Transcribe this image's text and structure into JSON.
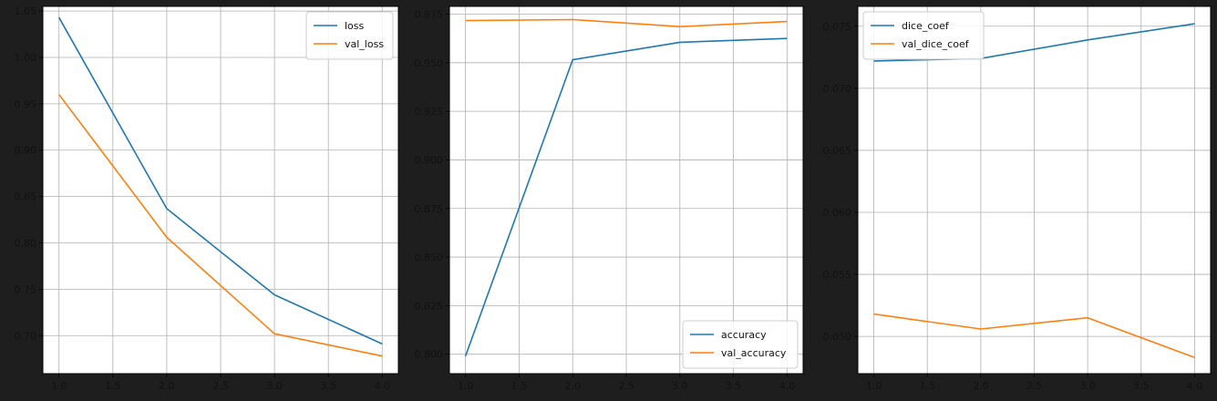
{
  "background": "#1e1e1e",
  "panel_color": "#ffffff",
  "grid_color": "#b0b0b0",
  "chart_data": [
    {
      "type": "line",
      "x": [
        1.0,
        2.0,
        3.0,
        4.0
      ],
      "series": [
        {
          "name": "loss",
          "color": "#1f77b4",
          "values": [
            1.043,
            0.837,
            0.744,
            0.691
          ]
        },
        {
          "name": "val_loss",
          "color": "#ff7f0e",
          "values": [
            0.96,
            0.806,
            0.702,
            0.678
          ]
        }
      ],
      "xlim": [
        0.85,
        4.15
      ],
      "ylim": [
        0.659,
        1.055
      ],
      "xticks": [
        1.0,
        1.5,
        2.0,
        2.5,
        3.0,
        3.5,
        4.0
      ],
      "xtick_labels": [
        "1.0",
        "1.5",
        "2.0",
        "2.5",
        "3.0",
        "3.5",
        "4.0"
      ],
      "yticks": [
        0.7,
        0.75,
        0.8,
        0.85,
        0.9,
        0.95,
        1.0,
        1.05
      ],
      "ytick_labels": [
        "0.70",
        "0.75",
        "0.80",
        "0.85",
        "0.90",
        "0.95",
        "1.00",
        "1.05"
      ],
      "grid": true,
      "legend": "top-right"
    },
    {
      "type": "line",
      "x": [
        1.0,
        2.0,
        3.0,
        4.0
      ],
      "series": [
        {
          "name": "accuracy",
          "color": "#1f77b4",
          "values": [
            0.799,
            0.9515,
            0.9605,
            0.9625
          ]
        },
        {
          "name": "val_accuracy",
          "color": "#ff7f0e",
          "values": [
            0.9717,
            0.9722,
            0.9686,
            0.9712
          ]
        }
      ],
      "xlim": [
        0.85,
        4.15
      ],
      "ylim": [
        0.79,
        0.979
      ],
      "xticks": [
        1.0,
        1.5,
        2.0,
        2.5,
        3.0,
        3.5,
        4.0
      ],
      "xtick_labels": [
        "1.0",
        "1.5",
        "2.0",
        "2.5",
        "3.0",
        "3.5",
        "4.0"
      ],
      "yticks": [
        0.8,
        0.825,
        0.85,
        0.875,
        0.9,
        0.925,
        0.95,
        0.975
      ],
      "ytick_labels": [
        "0.800",
        "0.825",
        "0.850",
        "0.875",
        "0.900",
        "0.925",
        "0.950",
        "0.975"
      ],
      "grid": true,
      "legend": "bottom-right"
    },
    {
      "type": "line",
      "x": [
        1.0,
        2.0,
        3.0,
        4.0
      ],
      "series": [
        {
          "name": "dice_coef",
          "color": "#1f77b4",
          "values": [
            0.0722,
            0.0724,
            0.0739,
            0.0752
          ]
        },
        {
          "name": "val_dice_coef",
          "color": "#ff7f0e",
          "values": [
            0.0518,
            0.0506,
            0.0515,
            0.0483
          ]
        }
      ],
      "xlim": [
        0.85,
        4.15
      ],
      "ylim": [
        0.047,
        0.0766
      ],
      "xticks": [
        1.0,
        1.5,
        2.0,
        2.5,
        3.0,
        3.5,
        4.0
      ],
      "xtick_labels": [
        "1.0",
        "1.5",
        "2.0",
        "2.5",
        "3.0",
        "3.5",
        "4.0"
      ],
      "yticks": [
        0.05,
        0.055,
        0.06,
        0.065,
        0.07,
        0.075
      ],
      "ytick_labels": [
        "0.050",
        "0.055",
        "0.060",
        "0.065",
        "0.070",
        "0.075"
      ],
      "grid": true,
      "legend": "top-left"
    }
  ]
}
